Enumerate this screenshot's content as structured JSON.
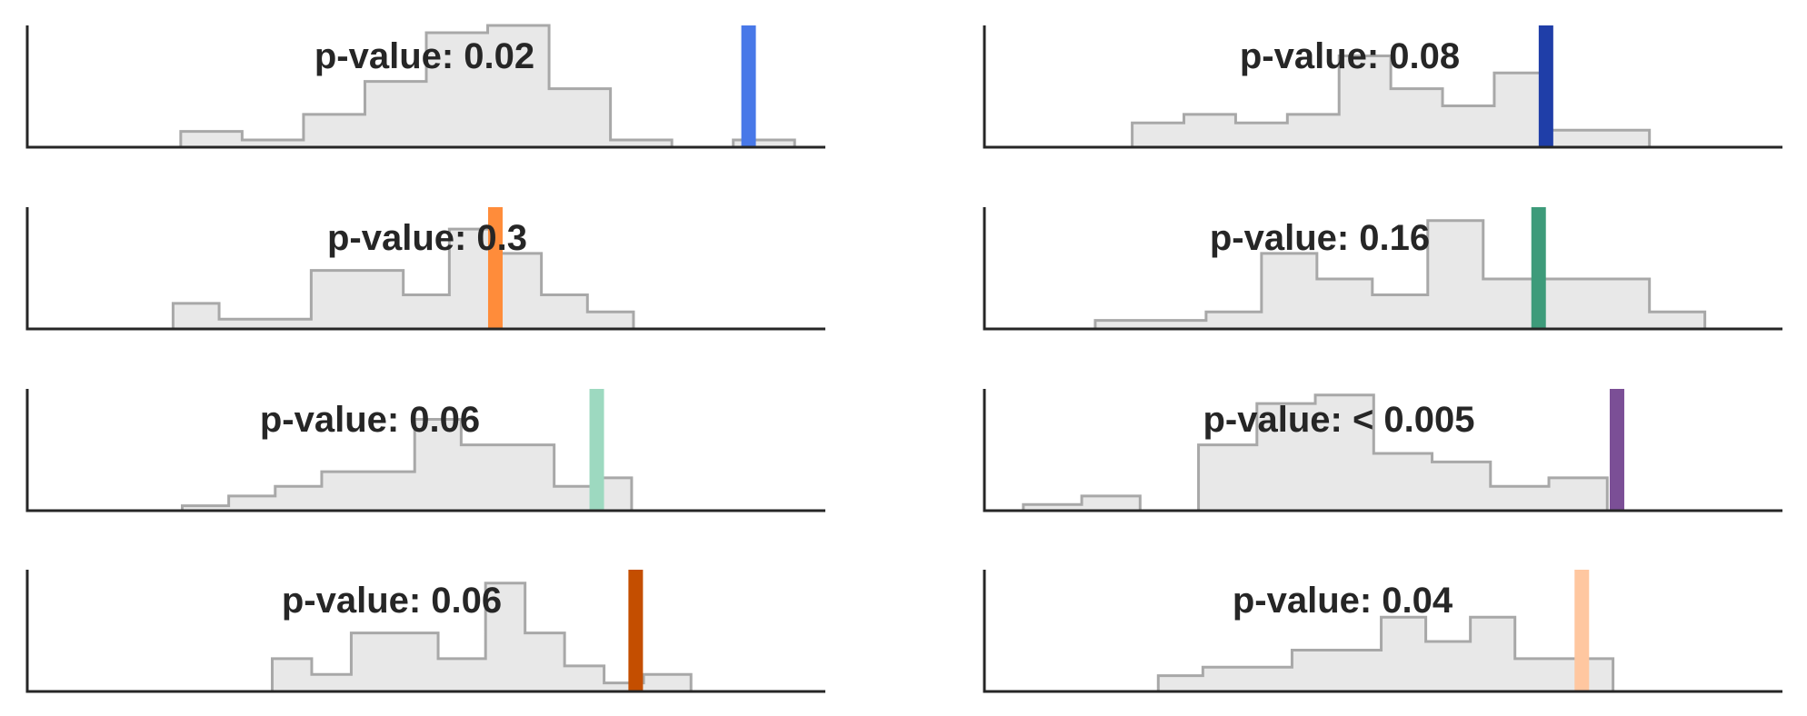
{
  "chart_data": [
    {
      "type": "histogram-step",
      "annotation": "p-value: 0.02",
      "bins": [
        {
          "x0": 0.0,
          "x1": 0.08,
          "h": 0.13
        },
        {
          "x0": 0.08,
          "x1": 0.16,
          "h": 0.06
        },
        {
          "x0": 0.16,
          "x1": 0.24,
          "h": 0.27
        },
        {
          "x0": 0.24,
          "x1": 0.32,
          "h": 0.54
        },
        {
          "x0": 0.32,
          "x1": 0.4,
          "h": 0.94
        },
        {
          "x0": 0.4,
          "x1": 0.48,
          "h": 1.0
        },
        {
          "x0": 0.48,
          "x1": 0.56,
          "h": 0.48
        },
        {
          "x0": 0.56,
          "x1": 0.64,
          "h": 0.06
        },
        {
          "x0": 0.64,
          "x1": 0.72,
          "h": 0.0
        },
        {
          "x0": 0.72,
          "x1": 0.8,
          "h": 0.06
        }
      ],
      "observed": 0.74,
      "xlim": [
        -0.2,
        0.84
      ],
      "ylim": [
        0,
        1.0
      ],
      "observed_color": "#4878e8"
    },
    {
      "type": "histogram-step",
      "annotation": "p-value: 0.3",
      "bins": [
        {
          "x0": 0.0,
          "x1": 0.06,
          "h": 0.21
        },
        {
          "x0": 0.06,
          "x1": 0.18,
          "h": 0.08
        },
        {
          "x0": 0.18,
          "x1": 0.3,
          "h": 0.48
        },
        {
          "x0": 0.3,
          "x1": 0.36,
          "h": 0.28
        },
        {
          "x0": 0.36,
          "x1": 0.42,
          "h": 0.82
        },
        {
          "x0": 0.42,
          "x1": 0.48,
          "h": 0.62
        },
        {
          "x0": 0.48,
          "x1": 0.54,
          "h": 0.28
        },
        {
          "x0": 0.54,
          "x1": 0.6,
          "h": 0.14
        }
      ],
      "observed": 0.42,
      "xlim": [
        -0.19,
        0.85
      ],
      "ylim": [
        0,
        1.0
      ],
      "observed_color": "#ff8c3a"
    },
    {
      "type": "histogram-step",
      "annotation": "p-value: 0.06",
      "bins": [
        {
          "x0": 0.0,
          "x1": 0.06,
          "h": 0.04
        },
        {
          "x0": 0.06,
          "x1": 0.12,
          "h": 0.12
        },
        {
          "x0": 0.12,
          "x1": 0.18,
          "h": 0.2
        },
        {
          "x0": 0.18,
          "x1": 0.3,
          "h": 0.32
        },
        {
          "x0": 0.3,
          "x1": 0.36,
          "h": 0.75
        },
        {
          "x0": 0.36,
          "x1": 0.48,
          "h": 0.54
        },
        {
          "x0": 0.48,
          "x1": 0.54,
          "h": 0.2
        },
        {
          "x0": 0.54,
          "x1": 0.58,
          "h": 0.27
        }
      ],
      "observed": 0.535,
      "xlim": [
        -0.2,
        0.83
      ],
      "ylim": [
        0,
        1.0
      ],
      "observed_color": "#9dd9c0"
    },
    {
      "type": "histogram-step",
      "annotation": "p-value: 0.06",
      "bins": [
        {
          "x0": 0.0,
          "x1": 0.05,
          "h": 0.27
        },
        {
          "x0": 0.05,
          "x1": 0.1,
          "h": 0.14
        },
        {
          "x0": 0.1,
          "x1": 0.21,
          "h": 0.48
        },
        {
          "x0": 0.21,
          "x1": 0.27,
          "h": 0.27
        },
        {
          "x0": 0.27,
          "x1": 0.32,
          "h": 0.89
        },
        {
          "x0": 0.32,
          "x1": 0.37,
          "h": 0.48
        },
        {
          "x0": 0.37,
          "x1": 0.42,
          "h": 0.21
        },
        {
          "x0": 0.42,
          "x1": 0.47,
          "h": 0.07
        },
        {
          "x0": 0.47,
          "x1": 0.53,
          "h": 0.14
        }
      ],
      "observed": 0.46,
      "xlim": [
        -0.31,
        0.7
      ],
      "ylim": [
        0,
        1.0
      ],
      "observed_color": "#c44e00"
    },
    {
      "type": "histogram-step",
      "annotation": "p-value: 0.08",
      "bins": [
        {
          "x0": 0.0,
          "x1": 0.07,
          "h": 0.2
        },
        {
          "x0": 0.07,
          "x1": 0.14,
          "h": 0.27
        },
        {
          "x0": 0.14,
          "x1": 0.21,
          "h": 0.2
        },
        {
          "x0": 0.21,
          "x1": 0.28,
          "h": 0.27
        },
        {
          "x0": 0.28,
          "x1": 0.35,
          "h": 0.75
        },
        {
          "x0": 0.35,
          "x1": 0.42,
          "h": 0.48
        },
        {
          "x0": 0.42,
          "x1": 0.49,
          "h": 0.34
        },
        {
          "x0": 0.49,
          "x1": 0.56,
          "h": 0.61
        },
        {
          "x0": 0.56,
          "x1": 0.63,
          "h": 0.14
        },
        {
          "x0": 0.63,
          "x1": 0.7,
          "h": 0.14
        }
      ],
      "observed": 0.56,
      "xlim": [
        -0.2,
        0.88
      ],
      "ylim": [
        0,
        1.0
      ],
      "observed_color": "#1f3ea8"
    },
    {
      "type": "histogram-step",
      "annotation": "p-value: 0.16",
      "bins": [
        {
          "x0": 0.0,
          "x1": 0.1,
          "h": 0.07
        },
        {
          "x0": 0.1,
          "x1": 0.15,
          "h": 0.14
        },
        {
          "x0": 0.15,
          "x1": 0.2,
          "h": 0.62
        },
        {
          "x0": 0.2,
          "x1": 0.25,
          "h": 0.41
        },
        {
          "x0": 0.25,
          "x1": 0.3,
          "h": 0.28
        },
        {
          "x0": 0.3,
          "x1": 0.35,
          "h": 0.89
        },
        {
          "x0": 0.35,
          "x1": 0.45,
          "h": 0.41
        },
        {
          "x0": 0.45,
          "x1": 0.5,
          "h": 0.41
        },
        {
          "x0": 0.5,
          "x1": 0.5,
          "h": 0.41
        },
        {
          "x0": 0.5,
          "x1": 0.55,
          "h": 0.14
        },
        {
          "x0": 0.55,
          "x1": 0.6,
          "h": 0.0
        }
      ],
      "observed": 0.4,
      "xlim": [
        -0.1,
        0.62
      ],
      "ylim": [
        0,
        1.0
      ],
      "observed_color": "#3d9b7a"
    },
    {
      "type": "histogram-step",
      "annotation": "p-value: < 0.005",
      "bins": [
        {
          "x0": 0.0,
          "x1": 0.06,
          "h": 0.05
        },
        {
          "x0": 0.06,
          "x1": 0.12,
          "h": 0.12
        },
        {
          "x0": 0.12,
          "x1": 0.18,
          "h": 0.0
        },
        {
          "x0": 0.18,
          "x1": 0.24,
          "h": 0.54
        },
        {
          "x0": 0.24,
          "x1": 0.3,
          "h": 0.88
        },
        {
          "x0": 0.3,
          "x1": 0.36,
          "h": 0.95
        },
        {
          "x0": 0.36,
          "x1": 0.42,
          "h": 0.47
        },
        {
          "x0": 0.42,
          "x1": 0.48,
          "h": 0.4
        },
        {
          "x0": 0.48,
          "x1": 0.54,
          "h": 0.2
        },
        {
          "x0": 0.54,
          "x1": 0.6,
          "h": 0.27
        }
      ],
      "observed": 0.61,
      "xlim": [
        -0.04,
        0.78
      ],
      "ylim": [
        0,
        1.0
      ],
      "observed_color": "#7b4f96"
    },
    {
      "type": "histogram-step",
      "annotation": "p-value: 0.04",
      "bins": [
        {
          "x0": 0.0,
          "x1": 0.1,
          "h": 0.13
        },
        {
          "x0": 0.1,
          "x1": 0.3,
          "h": 0.2
        },
        {
          "x0": 0.3,
          "x1": 0.5,
          "h": 0.34
        },
        {
          "x0": 0.5,
          "x1": 0.6,
          "h": 0.61
        },
        {
          "x0": 0.6,
          "x1": 0.7,
          "h": 0.41
        },
        {
          "x0": 0.7,
          "x1": 0.8,
          "h": 0.61
        },
        {
          "x0": 0.8,
          "x1": 1.0,
          "h": 0.27
        },
        {
          "x0": 1.0,
          "x1": 1.02,
          "h": 0.27
        }
      ],
      "observed": 0.95,
      "xlim": [
        -0.39,
        1.4
      ],
      "ylim": [
        0,
        1.0
      ],
      "observed_color": "#ffc7a0"
    }
  ]
}
